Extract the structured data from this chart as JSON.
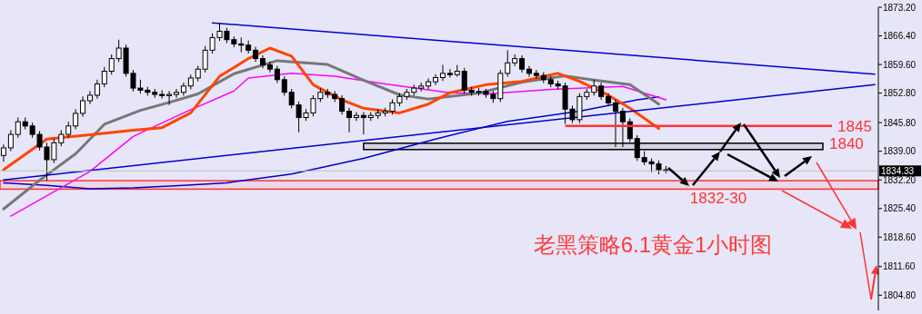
{
  "chart_data": {
    "type": "candlestick",
    "title": "老黑策略6.1黄金1小时图",
    "categories": [
      null,
      null,
      null,
      null,
      null,
      null,
      null,
      null,
      null,
      null,
      null,
      null,
      null,
      null,
      null,
      null,
      null,
      null,
      null,
      null,
      null,
      null,
      null,
      null,
      null,
      null,
      null,
      null,
      null,
      null,
      null,
      null,
      null,
      null,
      null,
      null,
      null,
      null,
      null,
      null,
      null,
      null,
      null,
      null,
      null,
      null,
      null,
      null,
      null,
      null,
      null,
      null,
      null,
      null,
      null,
      null,
      null,
      null,
      null,
      null,
      null,
      null,
      null,
      null,
      null,
      null,
      null,
      null,
      null,
      null,
      null,
      null,
      null,
      null,
      null,
      null,
      null,
      null,
      null,
      null,
      null,
      null,
      null,
      null,
      null,
      null,
      null,
      null,
      null,
      null,
      null,
      null,
      null,
      null,
      null,
      null,
      null,
      null,
      null,
      null,
      null,
      null,
      null,
      null,
      null,
      null,
      null,
      null,
      null,
      null,
      null,
      null,
      null,
      null,
      null,
      null,
      null,
      null,
      null,
      null,
      null,
      null
    ],
    "ohlc": [
      [
        1838,
        1840.6,
        1836.5,
        1839.8
      ],
      [
        1839.8,
        1844,
        1839,
        1843
      ],
      [
        1843,
        1847,
        1842.2,
        1846
      ],
      [
        1846,
        1847,
        1844.2,
        1845
      ],
      [
        1845,
        1845.8,
        1842.2,
        1843
      ],
      [
        1843,
        1843.8,
        1839.2,
        1840
      ],
      [
        1840,
        1841,
        1832,
        1837
      ],
      [
        1837,
        1842,
        1836.2,
        1841
      ],
      [
        1841,
        1844,
        1840.2,
        1843
      ],
      [
        1843,
        1846,
        1842.2,
        1845
      ],
      [
        1845,
        1849,
        1844.2,
        1848
      ],
      [
        1848,
        1852,
        1847.2,
        1851
      ],
      [
        1851,
        1853.3,
        1850.2,
        1852.3
      ],
      [
        1852.3,
        1856,
        1851.5,
        1855
      ],
      [
        1855,
        1859,
        1854.2,
        1858
      ],
      [
        1858,
        1862,
        1857.2,
        1861
      ],
      [
        1861,
        1865.5,
        1860.2,
        1863.5
      ],
      [
        1863.5,
        1864.3,
        1856.7,
        1857.5
      ],
      [
        1857.5,
        1858.3,
        1853.2,
        1854
      ],
      [
        1854,
        1856,
        1852.7,
        1853.5
      ],
      [
        1853.5,
        1854.3,
        1852.2,
        1853
      ],
      [
        1853,
        1853.8,
        1851.7,
        1852.5
      ],
      [
        1852.5,
        1853.5,
        1851.5,
        1852.2
      ],
      [
        1852.2,
        1853.3,
        1850,
        1852.5
      ],
      [
        1852.5,
        1853.8,
        1851.7,
        1853
      ],
      [
        1853,
        1855.3,
        1852.2,
        1854.5
      ],
      [
        1854.5,
        1857.2,
        1853.7,
        1856.4
      ],
      [
        1856.4,
        1859.3,
        1855.6,
        1858.5
      ],
      [
        1858.5,
        1864,
        1857.7,
        1863
      ],
      [
        1863,
        1867,
        1862.2,
        1866
      ],
      [
        1866,
        1869.5,
        1865.2,
        1867.5
      ],
      [
        1867.5,
        1868.3,
        1864.7,
        1865.5
      ],
      [
        1865.5,
        1866.3,
        1863.7,
        1864.5
      ],
      [
        1864.5,
        1866,
        1862.5,
        1864.2
      ],
      [
        1864.2,
        1865.3,
        1862.2,
        1863
      ],
      [
        1863,
        1863.8,
        1860.2,
        1861
      ],
      [
        1861,
        1861.8,
        1858.7,
        1859.5
      ],
      [
        1859.5,
        1860.3,
        1857.7,
        1858.5
      ],
      [
        1858.5,
        1859.3,
        1855.2,
        1856
      ],
      [
        1856,
        1856.8,
        1852.2,
        1853
      ],
      [
        1853,
        1853.8,
        1849.2,
        1850
      ],
      [
        1850,
        1850.8,
        1843.5,
        1847
      ],
      [
        1847,
        1849,
        1846.2,
        1848.1
      ],
      [
        1848.1,
        1852.3,
        1847.3,
        1851.5
      ],
      [
        1851.5,
        1854,
        1850.7,
        1853
      ],
      [
        1853,
        1853.8,
        1851.7,
        1852.5
      ],
      [
        1852.5,
        1853.3,
        1850.7,
        1851.5
      ],
      [
        1851.5,
        1852.3,
        1847.7,
        1848.5
      ],
      [
        1848.5,
        1849.3,
        1843.5,
        1847
      ],
      [
        1847,
        1848.3,
        1846.2,
        1847.5
      ],
      [
        1847.5,
        1848.3,
        1843,
        1847
      ],
      [
        1847,
        1848.3,
        1846.2,
        1847.5
      ],
      [
        1847.5,
        1849,
        1846.7,
        1848.1
      ],
      [
        1848.1,
        1849.3,
        1847.3,
        1848.5
      ],
      [
        1848.5,
        1851.3,
        1847.7,
        1850.5
      ],
      [
        1850.5,
        1852.8,
        1849.7,
        1852
      ],
      [
        1852,
        1853.8,
        1851.2,
        1853
      ],
      [
        1853,
        1854.8,
        1852.2,
        1854
      ],
      [
        1854,
        1855.3,
        1853.2,
        1854.5
      ],
      [
        1854.5,
        1856.3,
        1853.7,
        1855.5
      ],
      [
        1855.5,
        1857.3,
        1854.7,
        1856.5
      ],
      [
        1856.5,
        1859.5,
        1855.7,
        1857.5
      ],
      [
        1857.5,
        1858.5,
        1856.5,
        1857.2
      ],
      [
        1857.2,
        1859.5,
        1856.7,
        1858
      ],
      [
        1858,
        1858.8,
        1852.7,
        1853.5
      ],
      [
        1853.5,
        1854.3,
        1852.2,
        1853
      ],
      [
        1853,
        1854,
        1852.2,
        1853.2
      ],
      [
        1853.2,
        1853.8,
        1851.7,
        1852.5
      ],
      [
        1852.5,
        1853.3,
        1850.5,
        1851.5
      ],
      [
        1851.5,
        1858.3,
        1850.7,
        1857.5
      ],
      [
        1857.5,
        1863,
        1856.7,
        1860
      ],
      [
        1860,
        1862,
        1859.2,
        1861
      ],
      [
        1861,
        1861.8,
        1857.7,
        1858.5
      ],
      [
        1858.5,
        1859.3,
        1856.7,
        1857.5
      ],
      [
        1857.5,
        1858.3,
        1856.2,
        1857
      ],
      [
        1857,
        1857.8,
        1855.2,
        1856
      ],
      [
        1856,
        1856.8,
        1854.2,
        1855
      ],
      [
        1855,
        1855.8,
        1853.7,
        1854.5
      ],
      [
        1854.5,
        1855.3,
        1845.5,
        1849
      ],
      [
        1849,
        1849.8,
        1845.7,
        1846.5
      ],
      [
        1846.5,
        1852.8,
        1845.7,
        1852
      ],
      [
        1852,
        1853.8,
        1851.2,
        1853
      ],
      [
        1853,
        1856,
        1852.2,
        1854.5
      ],
      [
        1854.5,
        1855.3,
        1851.2,
        1852
      ],
      [
        1852,
        1852.8,
        1849.7,
        1850.5
      ],
      [
        1850.5,
        1851.3,
        1840,
        1848.5
      ],
      [
        1848.5,
        1849.3,
        1840,
        1846
      ],
      [
        1846,
        1846.8,
        1841.2,
        1842
      ],
      [
        1842,
        1842.8,
        1836.7,
        1837.5
      ],
      [
        1837.5,
        1839,
        1835.7,
        1836.5
      ],
      [
        1836.5,
        1837.3,
        1834,
        1836
      ],
      [
        1836,
        1836.8,
        1833.5,
        1834.6
      ],
      [
        1834.6,
        1835.5,
        1833.8,
        1834.33
      ],
      null,
      null,
      null,
      null,
      null,
      null,
      null,
      null,
      null,
      null,
      null,
      null,
      null,
      null,
      null,
      null,
      null,
      null,
      null,
      null,
      null,
      null,
      null,
      null,
      null,
      null,
      null,
      null,
      null
    ],
    "series": [
      {
        "type": "line",
        "color": "#0000cd",
        "values": [
          1831.5,
          null,
          null,
          null,
          null,
          null,
          1830.9,
          null,
          null,
          null,
          null,
          null,
          1830.1,
          null,
          null,
          null,
          null,
          null,
          1830.3,
          null,
          null,
          null,
          null,
          null,
          null,
          1830.9,
          null,
          null,
          null,
          null,
          null,
          1831.5,
          null,
          null,
          null,
          null,
          null,
          null,
          null,
          null,
          1833.6,
          null,
          null,
          null,
          null,
          null,
          null,
          null,
          null,
          null,
          1837.3,
          null,
          null,
          null,
          null,
          null,
          null,
          null,
          null,
          null,
          1841.9,
          null,
          null,
          null,
          null,
          null,
          null,
          null,
          null,
          null,
          1846.1,
          null,
          null,
          null,
          null,
          null,
          null,
          null,
          null,
          null,
          1848.5,
          null,
          null,
          null,
          null,
          null,
          null,
          null,
          1851.2,
          null,
          null,
          1851.9,
          null,
          null,
          null,
          null,
          null,
          null,
          null,
          null,
          null,
          null,
          null,
          null,
          null,
          null,
          null,
          null,
          null,
          null,
          null,
          null,
          null,
          null,
          null,
          null,
          null,
          null,
          null,
          null,
          null,
          null
        ]
      },
      {
        "type": "line",
        "color": "#ff00ff",
        "values": [
          null,
          1823.6,
          null,
          null,
          null,
          null,
          null,
          null,
          null,
          null,
          null,
          null,
          1834.2,
          null,
          null,
          null,
          null,
          null,
          1842.5,
          null,
          null,
          null,
          null,
          null,
          null,
          1848.1,
          null,
          null,
          null,
          null,
          null,
          null,
          1853.3,
          null,
          1856.4,
          null,
          null,
          null,
          null,
          null,
          1857.5,
          null,
          null,
          null,
          null,
          null,
          1856.8,
          null,
          null,
          null,
          null,
          null,
          null,
          1855,
          null,
          null,
          null,
          null,
          null,
          null,
          null,
          null,
          1852.9,
          null,
          null,
          null,
          null,
          null,
          1852.7,
          null,
          null,
          null,
          null,
          null,
          null,
          null,
          1853.7,
          null,
          null,
          null,
          null,
          null,
          null,
          null,
          null,
          null,
          1854.4,
          null,
          null,
          null,
          null,
          null,
          1851.2,
          null,
          null,
          null,
          null,
          null,
          null,
          null,
          null,
          null,
          null,
          null,
          null,
          null,
          null,
          null,
          null,
          null,
          null,
          null,
          null,
          null,
          null,
          null,
          null,
          null,
          null,
          null,
          null,
          null
        ]
      },
      {
        "type": "line",
        "color": "#777777",
        "values": [
          1825.3,
          null,
          null,
          null,
          null,
          1832.1,
          null,
          null,
          null,
          null,
          1838.4,
          null,
          null,
          null,
          1845.4,
          null,
          null,
          null,
          null,
          1848.7,
          null,
          null,
          null,
          1850.6,
          null,
          null,
          null,
          1852.6,
          null,
          null,
          null,
          null,
          1857.4,
          null,
          null,
          null,
          null,
          null,
          1860.5,
          null,
          null,
          null,
          null,
          null,
          null,
          1859.6,
          null,
          null,
          null,
          null,
          1855.9,
          null,
          null,
          null,
          null,
          1852.4,
          null,
          null,
          null,
          1851.4,
          null,
          null,
          null,
          null,
          null,
          null,
          1852.8,
          null,
          null,
          null,
          null,
          null,
          1855.4,
          null,
          null,
          null,
          null,
          null,
          1856.9,
          null,
          null,
          null,
          1855.9,
          null,
          null,
          null,
          null,
          1854.8,
          null,
          null,
          null,
          1850.2,
          null,
          null,
          null,
          null,
          null,
          null,
          null,
          null,
          null,
          null,
          null,
          null,
          null,
          null,
          null,
          null,
          null,
          null,
          null,
          null,
          null,
          null,
          null,
          null,
          null,
          null,
          null,
          null,
          null,
          null
        ]
      },
      {
        "type": "line",
        "color": "#ff4500",
        "values": [
          1834.6,
          null,
          null,
          null,
          null,
          null,
          1841.9,
          null,
          null,
          null,
          null,
          null,
          1842.9,
          null,
          null,
          null,
          null,
          null,
          1844,
          null,
          null,
          null,
          1844.6,
          null,
          null,
          null,
          1848.1,
          null,
          null,
          null,
          1856.8,
          null,
          null,
          null,
          1861,
          null,
          null,
          1863.5,
          null,
          null,
          1861.6,
          null,
          null,
          1854.8,
          null,
          null,
          null,
          1851.2,
          null,
          null,
          1849.2,
          null,
          null,
          null,
          null,
          1848.1,
          null,
          null,
          null,
          1850.2,
          null,
          null,
          1852.9,
          null,
          null,
          null,
          null,
          1854.8,
          null,
          null,
          null,
          null,
          1855.6,
          null,
          null,
          null,
          null,
          1857.5,
          null,
          null,
          1855.6,
          null,
          null,
          null,
          1852.3,
          null,
          null,
          1849.2,
          null,
          null,
          null,
          1844.4,
          null,
          null,
          null,
          null,
          null,
          null,
          null,
          null,
          null,
          null,
          null,
          null,
          null,
          null,
          null,
          null,
          null,
          null,
          null,
          null,
          null,
          null,
          null,
          null,
          null,
          null,
          null,
          null,
          null,
          null
        ]
      },
      {
        "type": "line",
        "color": "#0000cd",
        "values": [
          null,
          null,
          null,
          null,
          null,
          null,
          null,
          null,
          null,
          null,
          null,
          null,
          null,
          null,
          null,
          null,
          null,
          null,
          null,
          null,
          null,
          null,
          null,
          null,
          null,
          null,
          null,
          null,
          null,
          1869.5,
          null,
          null,
          null,
          null,
          null,
          null,
          null,
          null,
          null,
          null,
          null,
          null,
          null,
          null,
          null,
          null,
          null,
          null,
          null,
          null,
          null,
          null,
          null,
          null,
          null,
          null,
          null,
          null,
          null,
          null,
          null,
          null,
          null,
          null,
          null,
          null,
          null,
          null,
          null,
          null,
          null,
          null,
          null,
          null,
          null,
          null,
          null,
          null,
          null,
          null,
          null,
          null,
          null,
          null,
          null,
          null,
          null,
          null,
          null,
          null,
          null,
          null,
          null,
          null,
          null,
          null,
          null,
          null,
          null,
          null,
          null,
          null,
          null,
          null,
          null,
          null,
          null,
          null,
          null,
          null,
          null,
          null,
          null,
          null,
          null,
          null,
          null,
          null,
          null,
          null,
          null,
          1857.3
        ]
      },
      {
        "type": "line",
        "color": "#0000cd",
        "values": [
          1832.2,
          null,
          null,
          null,
          null,
          null,
          null,
          null,
          null,
          null,
          null,
          null,
          null,
          null,
          null,
          null,
          null,
          null,
          null,
          null,
          null,
          null,
          null,
          null,
          null,
          null,
          null,
          null,
          null,
          null,
          null,
          null,
          null,
          null,
          null,
          null,
          null,
          null,
          null,
          null,
          null,
          null,
          null,
          null,
          null,
          null,
          null,
          null,
          null,
          null,
          null,
          null,
          null,
          null,
          null,
          null,
          null,
          null,
          null,
          null,
          null,
          null,
          null,
          null,
          null,
          null,
          null,
          null,
          null,
          null,
          null,
          null,
          null,
          null,
          null,
          null,
          null,
          null,
          null,
          null,
          null,
          null,
          null,
          null,
          null,
          null,
          null,
          null,
          null,
          null,
          null,
          null,
          null,
          null,
          null,
          null,
          null,
          null,
          null,
          null,
          null,
          null,
          null,
          null,
          null,
          null,
          null,
          null,
          null,
          null,
          null,
          null,
          null,
          null,
          null,
          null,
          null,
          null,
          null,
          null,
          null,
          1854.8
        ]
      }
    ],
    "ylim": [
      1801.2,
      1873.2
    ],
    "yticks": [
      {
        "value": 1873.2,
        "label": "1873.20"
      },
      {
        "value": 1866.4,
        "label": "1866.40"
      },
      {
        "value": 1859.6,
        "label": "1859.60"
      },
      {
        "value": 1852.8,
        "label": "1852.80"
      },
      {
        "value": 1845.8,
        "label": "1845.80"
      },
      {
        "value": 1839,
        "label": "1839.00"
      },
      {
        "value": 1832.2,
        "label": "1832.20"
      },
      {
        "value": 1825.4,
        "label": "1825.40"
      },
      {
        "value": 1818.6,
        "label": "1818.60"
      },
      {
        "value": 1811.6,
        "label": "1811.60"
      },
      {
        "value": 1804.8,
        "label": "1804.80"
      }
    ],
    "ref_lines": [
      {
        "axis": "y",
        "value": 1845,
        "label": "1845",
        "color": "#ff3333"
      },
      {
        "axis": "y",
        "value": 1834.33,
        "label": "1834.33",
        "color": "#c0c0c0"
      }
    ],
    "bands": [
      {
        "axis": "y",
        "from": 1839.4,
        "to": 1840.9,
        "label": "1840",
        "color": "#000000"
      },
      {
        "axis": "y",
        "from": 1830,
        "to": 1832,
        "label": "1832-30",
        "color": "#ff3333"
      }
    ],
    "tick_labels": "y",
    "grid": false
  }
}
